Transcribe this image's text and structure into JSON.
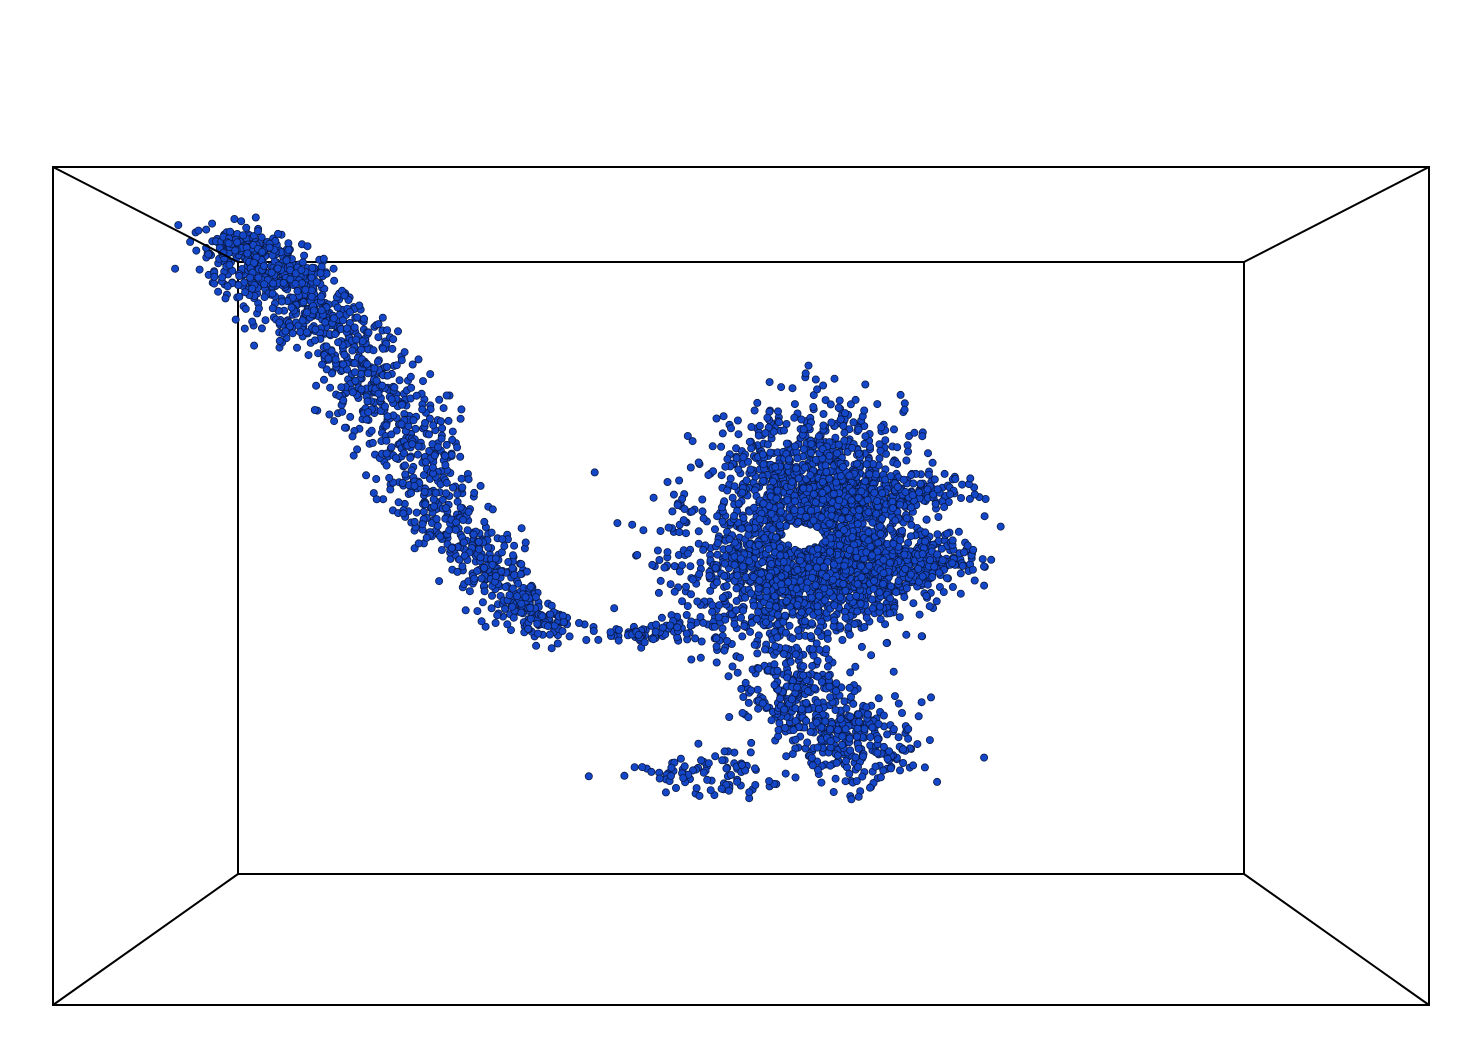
{
  "chart_data": {
    "type": "scatter",
    "projection": "3d-perspective",
    "box": "wireframe",
    "grid": false,
    "axes_labels": false,
    "marker_color": "#1446c8",
    "marker_edge_color": "#0a1a44",
    "background": "#ffffff",
    "clusters": [
      {
        "shape": "elongated-trail",
        "path": [
          [
            0.1,
            0.95
          ],
          [
            0.18,
            0.85
          ],
          [
            0.25,
            0.75
          ],
          [
            0.3,
            0.62
          ],
          [
            0.33,
            0.52
          ],
          [
            0.38,
            0.42
          ],
          [
            0.43,
            0.34
          ],
          [
            0.48,
            0.3
          ]
        ],
        "count": 1400
      },
      {
        "shape": "dense-mass",
        "center": [
          0.6,
          0.42
        ],
        "count": 3600
      }
    ]
  }
}
